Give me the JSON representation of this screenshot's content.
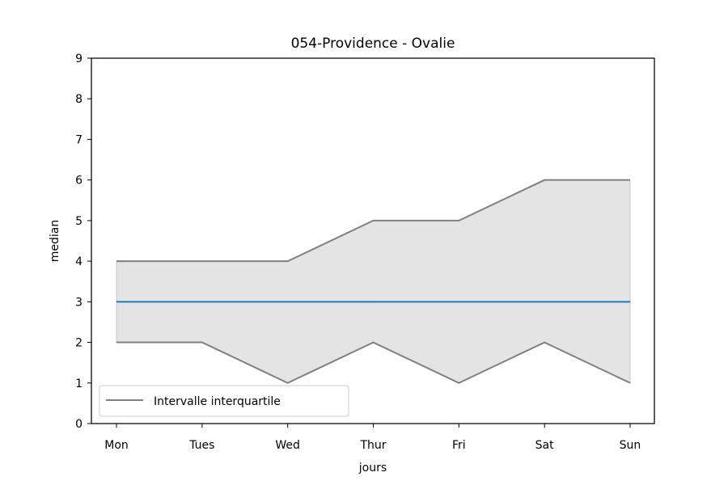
{
  "chart_data": {
    "type": "line",
    "title": "054-Providence - Ovalie",
    "xlabel": "jours",
    "ylabel": "median",
    "categories": [
      "Mon",
      "Tues",
      "Wed",
      "Thur",
      "Fri",
      "Sat",
      "Sun"
    ],
    "ylim": [
      0,
      9
    ],
    "yticks": [
      0,
      1,
      2,
      3,
      4,
      5,
      6,
      7,
      8,
      9
    ],
    "series": [
      {
        "values": [
          3,
          3,
          3,
          3,
          3,
          3,
          3
        ],
        "color": "#1f77b4"
      },
      {
        "values": [
          4,
          4,
          4,
          5,
          5,
          6,
          6
        ],
        "color": "#808080"
      },
      {
        "values": [
          2,
          2,
          1,
          2,
          1,
          2,
          1
        ],
        "color": "#808080"
      }
    ],
    "band": {
      "upper_series": 1,
      "lower_series": 2,
      "fill_color": "#e4e4e4"
    },
    "legend": {
      "entries": [
        "Intervalle interquartile"
      ],
      "placement": "lower-left"
    },
    "grid": false
  }
}
